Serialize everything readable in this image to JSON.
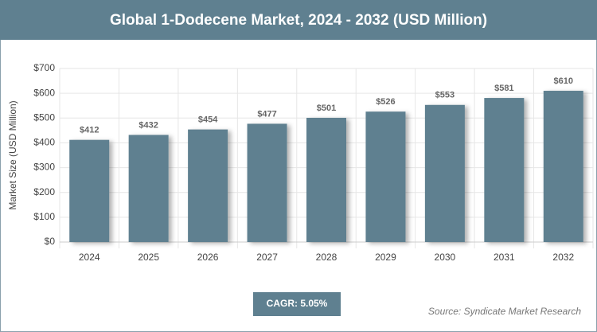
{
  "chart_data": {
    "type": "bar",
    "title": "Global 1-Dodecene Market, 2024 - 2032 (USD Million)",
    "y_label": "Market Size (USD Million)",
    "categories": [
      "2024",
      "2025",
      "2026",
      "2027",
      "2028",
      "2029",
      "2030",
      "2031",
      "2032"
    ],
    "values": [
      412,
      432,
      454,
      477,
      501,
      526,
      553,
      581,
      610
    ],
    "value_labels": [
      "$412",
      "$432",
      "$454",
      "$477",
      "$501",
      "$526",
      "$553",
      "$581",
      "$610"
    ],
    "color": "#5f8090",
    "ylim": [
      0,
      700
    ],
    "yticks": [
      {
        "value": 0,
        "label": "$0"
      },
      {
        "value": 100,
        "label": "$100"
      },
      {
        "value": 200,
        "label": "$200"
      },
      {
        "value": 300,
        "label": "$300"
      },
      {
        "value": 400,
        "label": "$400"
      },
      {
        "value": 500,
        "label": "$500"
      },
      {
        "value": 600,
        "label": "$600"
      },
      {
        "value": 700,
        "label": "$700"
      }
    ],
    "grid": true,
    "annotation": "CAGR: 5.05%",
    "source": "Source: Syndicate Market Research"
  }
}
